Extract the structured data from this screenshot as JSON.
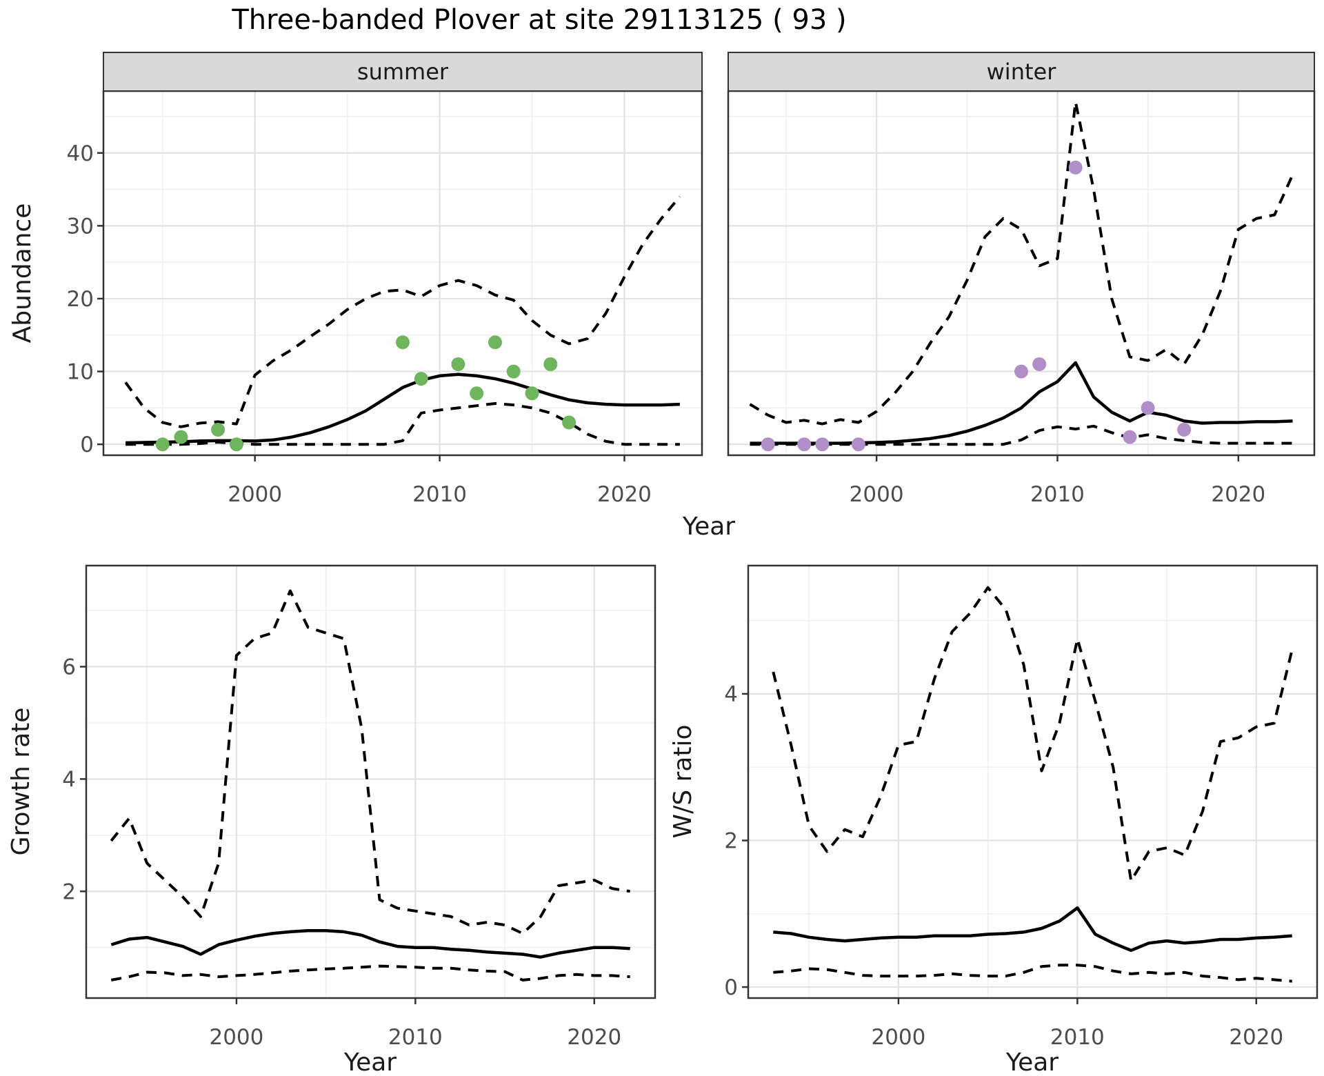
{
  "title": "Three-banded Plover at site 29113125 ( 93 )",
  "colors": {
    "summer_points": "#6FB55E",
    "winter_points": "#B28EC8",
    "line": "#000000",
    "strip_bg": "#D9D9D9",
    "strip_border": "#333333",
    "panel_border": "#333333",
    "grid_major": "#E2E2E2",
    "grid_minor": "#F0F0F0",
    "tick_text": "#4D4D4D",
    "axis_title": "#1A1A1A"
  },
  "chart_data": [
    {
      "id": "abundance-summer",
      "type": "line",
      "facet_label": "summer",
      "xlabel": "Year",
      "ylabel": "Abundance",
      "x_ticks": [
        2000,
        2010,
        2020
      ],
      "x_minor_ticks": [
        1995,
        2005,
        2015
      ],
      "y_ticks": [
        0,
        10,
        20,
        30,
        40
      ],
      "y_minor_ticks": [
        5,
        15,
        25,
        35,
        45
      ],
      "xlim": [
        1991.8,
        2024.2
      ],
      "ylim": [
        -1.5,
        48.5
      ],
      "grid": true,
      "legend": "none",
      "x": [
        1993,
        1994,
        1995,
        1996,
        1997,
        1998,
        1999,
        2000,
        2001,
        2002,
        2003,
        2004,
        2005,
        2006,
        2007,
        2008,
        2009,
        2010,
        2011,
        2012,
        2013,
        2014,
        2015,
        2016,
        2017,
        2018,
        2019,
        2020,
        2021,
        2022,
        2023
      ],
      "series": [
        {
          "name": "upper-ci",
          "style": "dashed",
          "values": [
            8.5,
            5,
            3,
            2.4,
            2.9,
            3.1,
            2.8,
            9.5,
            11.5,
            13,
            14.8,
            16.5,
            18.5,
            20,
            21,
            21.2,
            20.3,
            21.8,
            22.5,
            21.8,
            20.5,
            19.8,
            17,
            15,
            13.8,
            14.5,
            18,
            23,
            27.5,
            31,
            34
          ]
        },
        {
          "name": "fit",
          "style": "solid",
          "values": [
            0.2,
            0.25,
            0.3,
            0.35,
            0.45,
            0.5,
            0.5,
            0.45,
            0.6,
            1,
            1.6,
            2.4,
            3.4,
            4.6,
            6.2,
            7.8,
            8.8,
            9.4,
            9.6,
            9.4,
            9,
            8.4,
            7.6,
            6.8,
            6.1,
            5.7,
            5.5,
            5.4,
            5.4,
            5.4,
            5.5
          ]
        },
        {
          "name": "lower-ci",
          "style": "dashed",
          "values": [
            0,
            0,
            0,
            0,
            0.1,
            0.3,
            0.1,
            0,
            0,
            0,
            0,
            0,
            0,
            0,
            0,
            0.5,
            4.3,
            4.7,
            5,
            5.3,
            5.6,
            5.4,
            5,
            4.3,
            3,
            1.4,
            0.4,
            0,
            0,
            0,
            0
          ]
        }
      ],
      "points": {
        "name": "observed-summer-counts",
        "color": "#6FB55E",
        "x": [
          1995,
          1996,
          1998,
          1999,
          2008,
          2009,
          2011,
          2012,
          2013,
          2014,
          2015,
          2016,
          2017
        ],
        "y": [
          0,
          1,
          2,
          0,
          14,
          9,
          11,
          7,
          14,
          10,
          7,
          11,
          3
        ]
      }
    },
    {
      "id": "abundance-winter",
      "type": "line",
      "facet_label": "winter",
      "xlabel": "Year",
      "ylabel": "Abundance",
      "x_ticks": [
        2000,
        2010,
        2020
      ],
      "x_minor_ticks": [
        1995,
        2005,
        2015
      ],
      "y_ticks": [
        0,
        10,
        20,
        30,
        40
      ],
      "y_minor_ticks": [
        5,
        15,
        25,
        35,
        45
      ],
      "xlim": [
        1991.8,
        2024.2
      ],
      "ylim": [
        -1.5,
        48.5
      ],
      "grid": true,
      "legend": "none",
      "x": [
        1993,
        1994,
        1995,
        1996,
        1997,
        1998,
        1999,
        2000,
        2001,
        2002,
        2003,
        2004,
        2005,
        2006,
        2007,
        2008,
        2009,
        2010,
        2011,
        2012,
        2013,
        2014,
        2015,
        2016,
        2017,
        2018,
        2019,
        2020,
        2021,
        2022,
        2023
      ],
      "series": [
        {
          "name": "upper-ci",
          "style": "dashed",
          "values": [
            5.5,
            4,
            3,
            3.3,
            2.8,
            3.4,
            3,
            4.5,
            7,
            10,
            14,
            17.5,
            22.5,
            28.5,
            31,
            29.5,
            24.5,
            25.5,
            47,
            35,
            20,
            12,
            11.5,
            13,
            11,
            15,
            21,
            29.5,
            31,
            31.5,
            37
          ]
        },
        {
          "name": "fit",
          "style": "solid",
          "values": [
            0.15,
            0.15,
            0.15,
            0.15,
            0.15,
            0.15,
            0.2,
            0.25,
            0.35,
            0.55,
            0.8,
            1.2,
            1.8,
            2.6,
            3.6,
            5,
            7.2,
            8.6,
            11.2,
            6.5,
            4.4,
            3.2,
            4.4,
            4,
            3.2,
            2.9,
            3,
            3,
            3.1,
            3.1,
            3.2
          ]
        },
        {
          "name": "lower-ci",
          "style": "dashed",
          "values": [
            0,
            0,
            0,
            0,
            0,
            0,
            0,
            0,
            0,
            0,
            0,
            0,
            0,
            0,
            0,
            0.6,
            1.9,
            2.4,
            2.1,
            2.5,
            1.6,
            0.9,
            1.3,
            0.8,
            0.5,
            0.25,
            0.15,
            0.15,
            0.15,
            0.15,
            0.15
          ]
        }
      ],
      "points": {
        "name": "observed-winter-counts",
        "color": "#B28EC8",
        "x": [
          1994,
          1996,
          1997,
          1999,
          2008,
          2009,
          2011,
          2014,
          2015,
          2017
        ],
        "y": [
          0,
          0,
          0,
          0,
          10,
          11,
          38,
          1,
          5,
          2
        ]
      }
    },
    {
      "id": "growth-rate",
      "type": "line",
      "facet_label": "",
      "xlabel": "Year",
      "ylabel": "Growth rate",
      "x_ticks": [
        2000,
        2010,
        2020
      ],
      "x_minor_ticks": [
        1995,
        2005,
        2015
      ],
      "y_ticks": [
        2,
        4,
        6
      ],
      "y_minor_ticks": [
        1,
        3,
        5,
        7
      ],
      "xlim": [
        1991.6,
        2023.4
      ],
      "ylim": [
        0.1,
        7.8
      ],
      "grid": true,
      "legend": "none",
      "x": [
        1993,
        1994,
        1995,
        1996,
        1997,
        1998,
        1999,
        2000,
        2001,
        2002,
        2003,
        2004,
        2005,
        2006,
        2007,
        2008,
        2009,
        2010,
        2011,
        2012,
        2013,
        2014,
        2015,
        2016,
        2017,
        2018,
        2019,
        2020,
        2021,
        2022
      ],
      "series": [
        {
          "name": "upper-ci",
          "style": "dashed",
          "values": [
            2.9,
            3.3,
            2.5,
            2.2,
            1.9,
            1.55,
            2.5,
            6.2,
            6.5,
            6.6,
            7.35,
            6.7,
            6.6,
            6.5,
            4.9,
            1.85,
            1.7,
            1.65,
            1.6,
            1.55,
            1.4,
            1.45,
            1.4,
            1.25,
            1.55,
            2.1,
            2.15,
            2.2,
            2.05,
            2
          ]
        },
        {
          "name": "fit",
          "style": "solid",
          "values": [
            1.05,
            1.15,
            1.18,
            1.1,
            1.02,
            0.88,
            1.05,
            1.13,
            1.2,
            1.25,
            1.28,
            1.3,
            1.3,
            1.28,
            1.22,
            1.1,
            1.02,
            1,
            1,
            0.97,
            0.95,
            0.92,
            0.9,
            0.88,
            0.83,
            0.9,
            0.95,
            1,
            1,
            0.98
          ]
        },
        {
          "name": "lower-ci",
          "style": "dashed",
          "values": [
            0.42,
            0.48,
            0.56,
            0.55,
            0.5,
            0.52,
            0.48,
            0.5,
            0.52,
            0.55,
            0.58,
            0.6,
            0.62,
            0.63,
            0.65,
            0.67,
            0.66,
            0.65,
            0.63,
            0.63,
            0.6,
            0.58,
            0.57,
            0.42,
            0.45,
            0.5,
            0.52,
            0.5,
            0.5,
            0.48
          ]
        }
      ],
      "points": null
    },
    {
      "id": "ws-ratio",
      "type": "line",
      "facet_label": "",
      "xlabel": "Year",
      "ylabel": "W/S ratio",
      "x_ticks": [
        2000,
        2010,
        2020
      ],
      "x_minor_ticks": [
        1995,
        2005,
        2015
      ],
      "y_ticks": [
        0,
        2,
        4
      ],
      "y_minor_ticks": [
        1,
        3,
        5
      ],
      "xlim": [
        1991.6,
        2023.4
      ],
      "ylim": [
        -0.15,
        5.75
      ],
      "grid": true,
      "legend": "none",
      "x": [
        1993,
        1994,
        1995,
        1996,
        1997,
        1998,
        1999,
        2000,
        2001,
        2002,
        2003,
        2004,
        2005,
        2006,
        2007,
        2008,
        2009,
        2010,
        2011,
        2012,
        2013,
        2014,
        2015,
        2016,
        2017,
        2018,
        2019,
        2020,
        2021,
        2022
      ],
      "series": [
        {
          "name": "upper-ci",
          "style": "dashed",
          "values": [
            4.3,
            3.3,
            2.2,
            1.85,
            2.15,
            2.05,
            2.6,
            3.3,
            3.35,
            4.2,
            4.85,
            5.1,
            5.45,
            5.15,
            4.4,
            2.95,
            3.6,
            4.75,
            3.9,
            3,
            1.45,
            1.85,
            1.9,
            1.8,
            2.4,
            3.35,
            3.4,
            3.55,
            3.6,
            4.6
          ]
        },
        {
          "name": "fit",
          "style": "solid",
          "values": [
            0.75,
            0.73,
            0.68,
            0.65,
            0.63,
            0.65,
            0.67,
            0.68,
            0.68,
            0.7,
            0.7,
            0.7,
            0.72,
            0.73,
            0.75,
            0.8,
            0.9,
            1.08,
            0.72,
            0.6,
            0.5,
            0.6,
            0.63,
            0.6,
            0.62,
            0.65,
            0.65,
            0.67,
            0.68,
            0.7
          ]
        },
        {
          "name": "lower-ci",
          "style": "dashed",
          "values": [
            0.2,
            0.22,
            0.25,
            0.24,
            0.2,
            0.16,
            0.15,
            0.15,
            0.15,
            0.16,
            0.18,
            0.16,
            0.15,
            0.15,
            0.2,
            0.28,
            0.3,
            0.3,
            0.28,
            0.22,
            0.18,
            0.2,
            0.18,
            0.2,
            0.15,
            0.13,
            0.1,
            0.12,
            0.1,
            0.08
          ]
        }
      ],
      "points": null
    }
  ]
}
